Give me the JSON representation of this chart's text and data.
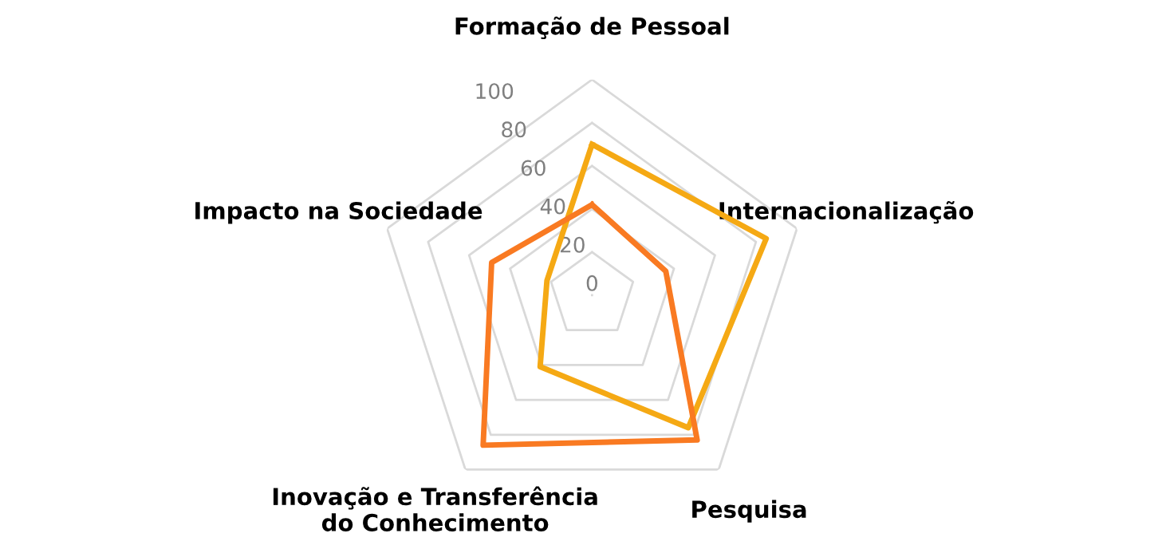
{
  "chart_data": {
    "type": "radar",
    "categories": [
      "Formação de Pessoal",
      "Internacionalização",
      "Pesquisa",
      "Inovação e Transferência\ndo Conhecimento",
      "Impacto na Sociedade"
    ],
    "series": [
      {
        "color": "#f5a914",
        "values": [
          70,
          85,
          76,
          41,
          22
        ]
      },
      {
        "color": "#f97a22",
        "values": [
          42,
          36,
          83,
          86,
          49
        ]
      }
    ],
    "ylim": [
      0,
      100
    ],
    "yticks": [
      0,
      20,
      40,
      60,
      80,
      100
    ],
    "grid": true,
    "marker": "none",
    "line_style": "solid"
  }
}
